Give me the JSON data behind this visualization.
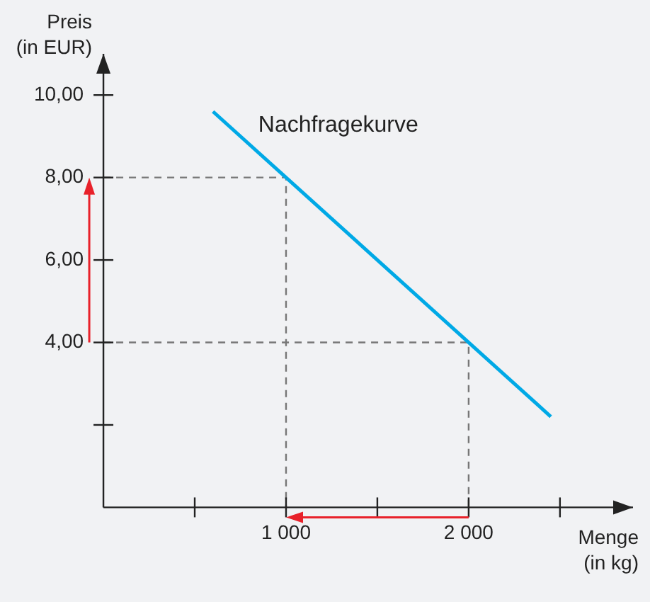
{
  "chart_data": {
    "type": "line",
    "xlabel": "Menge\n(in kg)",
    "ylabel": "Preis\n(in EUR)",
    "x": [
      600,
      2450
    ],
    "series": [
      {
        "name": "Nachfragekurve",
        "color": "#00a9e6",
        "values": [
          9.6,
          2.2
        ]
      },
      {
        "x": [
          0,
          1000,
          1000
        ],
        "values": [
          8,
          8,
          0
        ],
        "color": "#777777",
        "line_style": "dashed"
      },
      {
        "x": [
          0,
          2000,
          2000
        ],
        "values": [
          4,
          4,
          0
        ],
        "color": "#777777",
        "line_style": "dashed"
      }
    ],
    "xlim": [
      0,
      2900
    ],
    "ylim": [
      0,
      11
    ],
    "xticks": [
      {
        "value": 500,
        "label": null
      },
      {
        "value": 1000,
        "label": "1 000"
      },
      {
        "value": 1500,
        "label": null
      },
      {
        "value": 2000,
        "label": "2 000"
      },
      {
        "value": 2500,
        "label": null
      }
    ],
    "yticks": [
      {
        "value": 2,
        "label": null
      },
      {
        "value": 4,
        "label": "4,00"
      },
      {
        "value": 6,
        "label": "6,00"
      },
      {
        "value": 8,
        "label": "8,00"
      },
      {
        "value": 10,
        "label": "10,00"
      }
    ],
    "grid": false,
    "legend": false,
    "marker": "none"
  }
}
